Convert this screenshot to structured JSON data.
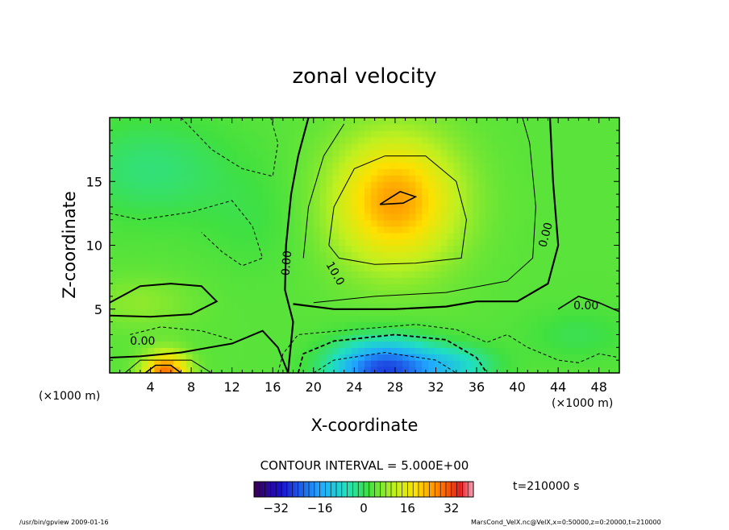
{
  "chart_data": {
    "type": "heatmap",
    "title": "zonal velocity",
    "xlabel": "X-coordinate",
    "ylabel": "Z-coordinate",
    "x_unit_left": "(×1000 m)",
    "x_unit_right": "(×1000 m)",
    "xlim": [
      0,
      50
    ],
    "ylim": [
      0,
      20
    ],
    "x_ticks": [
      4,
      8,
      12,
      16,
      20,
      24,
      28,
      32,
      36,
      40,
      44,
      48
    ],
    "x_tick_labels": [
      "4",
      "8",
      "12",
      "16",
      "20",
      "24",
      "28",
      "32",
      "36",
      "40",
      "44",
      "48"
    ],
    "y_ticks": [
      5,
      10,
      15
    ],
    "y_tick_labels": [
      "5",
      "10",
      "15"
    ],
    "contour_interval_text": "CONTOUR INTERVAL = 5.000E+00",
    "contour_labels": [
      "0.00",
      "0.00",
      "10.0",
      "0.00",
      "0.00"
    ],
    "colorbar": {
      "range": [
        -40,
        40
      ],
      "ticks": [
        -32,
        -16,
        0,
        16,
        32
      ],
      "tick_labels": [
        "−32",
        "−16",
        "0",
        "16",
        "32"
      ],
      "colormap": "rainbow"
    },
    "time_label": "t=210000 s",
    "features": [
      {
        "name": "positive core",
        "x": 28,
        "z": 13.5,
        "value": 20
      },
      {
        "name": "negative core",
        "x": 27,
        "z": 0.5,
        "value": -25
      },
      {
        "name": "bottom-left positive",
        "x": 5.5,
        "z": 0.3,
        "value": 20
      },
      {
        "name": "upper-left negative",
        "x": 4,
        "z": 16,
        "value": -4
      }
    ],
    "grid": false,
    "legend": "none"
  },
  "footer": {
    "left": "/usr/bin/gpview   2009-01-16",
    "right": "MarsCond_VelX.nc@VelX,x=0:50000,z=0:20000,t=210000"
  }
}
